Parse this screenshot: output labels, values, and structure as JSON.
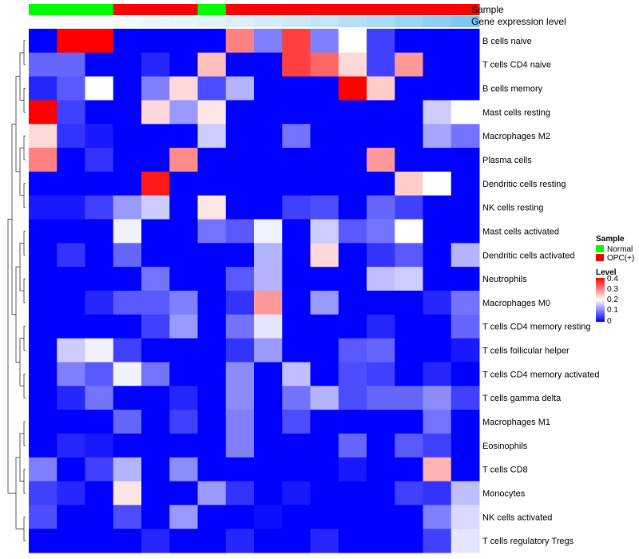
{
  "chart_data": {
    "type": "heatmap",
    "annotation_rows": [
      "Sample",
      "Gene expression level"
    ],
    "rows": [
      "B cells naive",
      "T cells CD4 naive",
      "B cells memory",
      "Mast cells resting",
      "Macrophages M2",
      "Plasma cells",
      "Dendritic cells resting",
      "NK cells resting",
      "Mast cells activated",
      "Dendritic cells activated",
      "Neutrophils",
      "Macrophages M0",
      "T cells CD4 memory resting",
      "T cells follicular helper",
      "T cells CD4 memory activated",
      "T cells gamma delta",
      "Macrophages M1",
      "Eosinophils",
      "T cells CD8",
      "Monocytes",
      "NK cells activated",
      "T cells regulatory  Tregs"
    ],
    "sample_groups": [
      "Normal",
      "Normal",
      "Normal",
      "OPC(+)",
      "OPC(+)",
      "OPC(+)",
      "Normal",
      "OPC(+)",
      "OPC(+)",
      "OPC(+)",
      "OPC(+)",
      "OPC(+)",
      "OPC(+)",
      "OPC(+)",
      "OPC(+)",
      "OPC(+)"
    ],
    "gene_expression_level": [
      0.02,
      0.04,
      0.06,
      0.08,
      0.11,
      0.14,
      0.17,
      0.21,
      0.25,
      0.3,
      0.36,
      0.43,
      0.5,
      0.58,
      0.66,
      0.75
    ],
    "values": [
      [
        0.0,
        0.4,
        0.4,
        0.0,
        0.0,
        0.0,
        0.0,
        0.3,
        0.1,
        0.35,
        0.1,
        0.2,
        0.05,
        0.0,
        0.0,
        0.0
      ],
      [
        0.08,
        0.08,
        0.0,
        0.0,
        0.03,
        0.0,
        0.25,
        0.0,
        0.0,
        0.35,
        0.32,
        0.23,
        0.05,
        0.28,
        0.0,
        0.0
      ],
      [
        0.03,
        0.07,
        0.2,
        0.0,
        0.1,
        0.23,
        0.06,
        0.14,
        0.0,
        0.0,
        0.0,
        0.4,
        0.24,
        0.0,
        0.0,
        0.0
      ],
      [
        0.4,
        0.05,
        0.0,
        0.0,
        0.23,
        0.12,
        0.22,
        0.0,
        0.0,
        0.0,
        0.0,
        0.0,
        0.0,
        0.0,
        0.16,
        0.2
      ],
      [
        0.23,
        0.04,
        0.02,
        0.0,
        0.0,
        0.0,
        0.16,
        0.0,
        0.0,
        0.09,
        0.0,
        0.0,
        0.0,
        0.0,
        0.13,
        0.09
      ],
      [
        0.3,
        0.0,
        0.04,
        0.0,
        0.0,
        0.29,
        0.0,
        0.0,
        0.0,
        0.0,
        0.0,
        0.0,
        0.28,
        0.0,
        0.0,
        0.0
      ],
      [
        0.0,
        0.0,
        0.0,
        0.0,
        0.38,
        0.0,
        0.0,
        0.0,
        0.0,
        0.0,
        0.0,
        0.0,
        0.0,
        0.24,
        0.2,
        0.0
      ],
      [
        0.02,
        0.02,
        0.05,
        0.12,
        0.16,
        0.0,
        0.22,
        0.0,
        0.0,
        0.05,
        0.06,
        0.0,
        0.08,
        0.05,
        0.0,
        0.0
      ],
      [
        0.0,
        0.0,
        0.0,
        0.19,
        0.0,
        0.0,
        0.09,
        0.07,
        0.19,
        0.0,
        0.16,
        0.07,
        0.09,
        0.2,
        0.0,
        0.0
      ],
      [
        0.0,
        0.04,
        0.0,
        0.08,
        0.0,
        0.0,
        0.0,
        0.0,
        0.14,
        0.0,
        0.23,
        0.0,
        0.04,
        0.07,
        0.0,
        0.14
      ],
      [
        0.0,
        0.0,
        0.0,
        0.0,
        0.09,
        0.0,
        0.0,
        0.07,
        0.14,
        0.0,
        0.0,
        0.0,
        0.15,
        0.16,
        0.0,
        0.0
      ],
      [
        0.0,
        0.0,
        0.03,
        0.07,
        0.07,
        0.1,
        0.0,
        0.04,
        0.28,
        0.0,
        0.12,
        0.0,
        0.0,
        0.0,
        0.03,
        0.09
      ],
      [
        0.0,
        0.0,
        0.0,
        0.0,
        0.05,
        0.12,
        0.0,
        0.09,
        0.18,
        0.0,
        0.0,
        0.0,
        0.03,
        0.0,
        0.0,
        0.08
      ],
      [
        0.0,
        0.16,
        0.19,
        0.05,
        0.0,
        0.0,
        0.0,
        0.04,
        0.12,
        0.0,
        0.0,
        0.07,
        0.08,
        0.0,
        0.0,
        0.02
      ],
      [
        0.0,
        0.1,
        0.07,
        0.19,
        0.09,
        0.0,
        0.0,
        0.11,
        0.0,
        0.15,
        0.0,
        0.06,
        0.05,
        0.0,
        0.03,
        0.0
      ],
      [
        0.0,
        0.03,
        0.09,
        0.0,
        0.0,
        0.03,
        0.0,
        0.11,
        0.0,
        0.09,
        0.14,
        0.06,
        0.08,
        0.08,
        0.11,
        0.05
      ],
      [
        0.0,
        0.0,
        0.0,
        0.08,
        0.0,
        0.05,
        0.0,
        0.1,
        0.0,
        0.06,
        0.0,
        0.0,
        0.0,
        0.0,
        0.09,
        0.0
      ],
      [
        0.0,
        0.03,
        0.02,
        0.0,
        0.0,
        0.0,
        0.0,
        0.1,
        0.0,
        0.0,
        0.0,
        0.08,
        0.0,
        0.07,
        0.05,
        0.0
      ],
      [
        0.1,
        0.0,
        0.05,
        0.14,
        0.0,
        0.11,
        0.0,
        0.0,
        0.0,
        0.0,
        0.0,
        0.02,
        0.0,
        0.0,
        0.26,
        0.0
      ],
      [
        0.05,
        0.03,
        0.0,
        0.22,
        0.0,
        0.0,
        0.12,
        0.04,
        0.0,
        0.02,
        0.0,
        0.0,
        0.0,
        0.05,
        0.04,
        0.15
      ],
      [
        0.06,
        0.0,
        0.0,
        0.06,
        0.0,
        0.12,
        0.0,
        0.0,
        0.01,
        0.0,
        0.0,
        0.0,
        0.0,
        0.0,
        0.1,
        0.17
      ],
      [
        0.0,
        0.0,
        0.0,
        0.0,
        0.03,
        0.0,
        0.0,
        0.03,
        0.0,
        0.0,
        0.03,
        0.0,
        0.0,
        0.0,
        0.05,
        0.18
      ]
    ],
    "color_scale": {
      "min": 0,
      "max": 0.4,
      "low": "#0000ff",
      "mid": "#ffffff",
      "high": "#ff0000"
    },
    "legends": {
      "sample": {
        "title": "Sample",
        "entries": [
          {
            "label": "Normal",
            "color": "#00ff00"
          },
          {
            "label": "OPC(+)",
            "color": "#ff0000"
          }
        ]
      },
      "level": {
        "title": "Level",
        "ticks": [
          "0.4",
          "0.3",
          "0.2",
          "0.1",
          "0"
        ]
      }
    },
    "expression_colors": {
      "low": "#ffffff",
      "high": "#56b4e9"
    },
    "row_dendrogram": true,
    "grid": false,
    "legend_placement": "right"
  }
}
